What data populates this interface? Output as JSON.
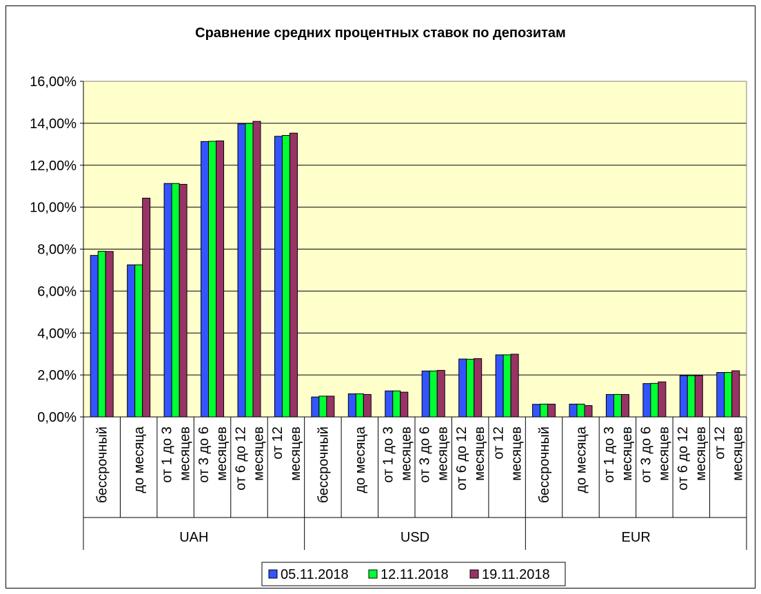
{
  "chart_data": {
    "type": "bar",
    "title": "Сравнение средних процентных ставок по депозитам",
    "ylim": [
      0,
      0.16
    ],
    "ytick_labels": [
      "0,00%",
      "2,00%",
      "4,00%",
      "6,00%",
      "8,00%",
      "10,00%",
      "12,00%",
      "14,00%",
      "16,00%"
    ],
    "groups": [
      {
        "label": "UAH",
        "categories": [
          [
            "бессрочный"
          ],
          [
            "до месяца"
          ],
          [
            "от 1 до 3",
            "месяцев"
          ],
          [
            "от 3 до 6",
            "месяцев"
          ],
          [
            "от 6 до 12",
            "месяцев"
          ],
          [
            "от 12",
            "месяцев"
          ]
        ]
      },
      {
        "label": "USD",
        "categories": [
          [
            "бессрочный"
          ],
          [
            "до месяца"
          ],
          [
            "от 1 до 3",
            "месяцев"
          ],
          [
            "от 3 до 6",
            "месяцев"
          ],
          [
            "от 6 до 12",
            "месяцев"
          ],
          [
            "от 12",
            "месяцев"
          ]
        ]
      },
      {
        "label": "EUR",
        "categories": [
          [
            "бессрочный"
          ],
          [
            "до месяца"
          ],
          [
            "от 1 до 3",
            "месяцев"
          ],
          [
            "от 3 до 6",
            "месяцев"
          ],
          [
            "от 6 до 12",
            "месяцев"
          ],
          [
            "от 12",
            "месяцев"
          ]
        ]
      }
    ],
    "series": [
      {
        "name": "05.11.2018",
        "color": "#3355ff",
        "values": [
          0.077,
          0.0725,
          0.1113,
          0.1313,
          0.1397,
          0.1338,
          0.0095,
          0.011,
          0.0124,
          0.0219,
          0.0276,
          0.0296,
          0.006,
          0.0061,
          0.0107,
          0.0159,
          0.0197,
          0.0212
        ]
      },
      {
        "name": "12.11.2018",
        "color": "#00ff33",
        "values": [
          0.079,
          0.0725,
          0.1113,
          0.1314,
          0.1399,
          0.1342,
          0.0099,
          0.011,
          0.0124,
          0.0219,
          0.0275,
          0.0296,
          0.0061,
          0.0061,
          0.0107,
          0.016,
          0.0197,
          0.0212
        ]
      },
      {
        "name": "19.11.2018",
        "color": "#993366",
        "values": [
          0.0789,
          0.1043,
          0.1109,
          0.1316,
          0.1409,
          0.1353,
          0.0099,
          0.0107,
          0.0118,
          0.0222,
          0.0278,
          0.0299,
          0.0061,
          0.0054,
          0.0107,
          0.0167,
          0.0197,
          0.022
        ]
      }
    ],
    "grid": true,
    "legend_position": "bottom-center",
    "plot_background": "#ffffcc"
  }
}
